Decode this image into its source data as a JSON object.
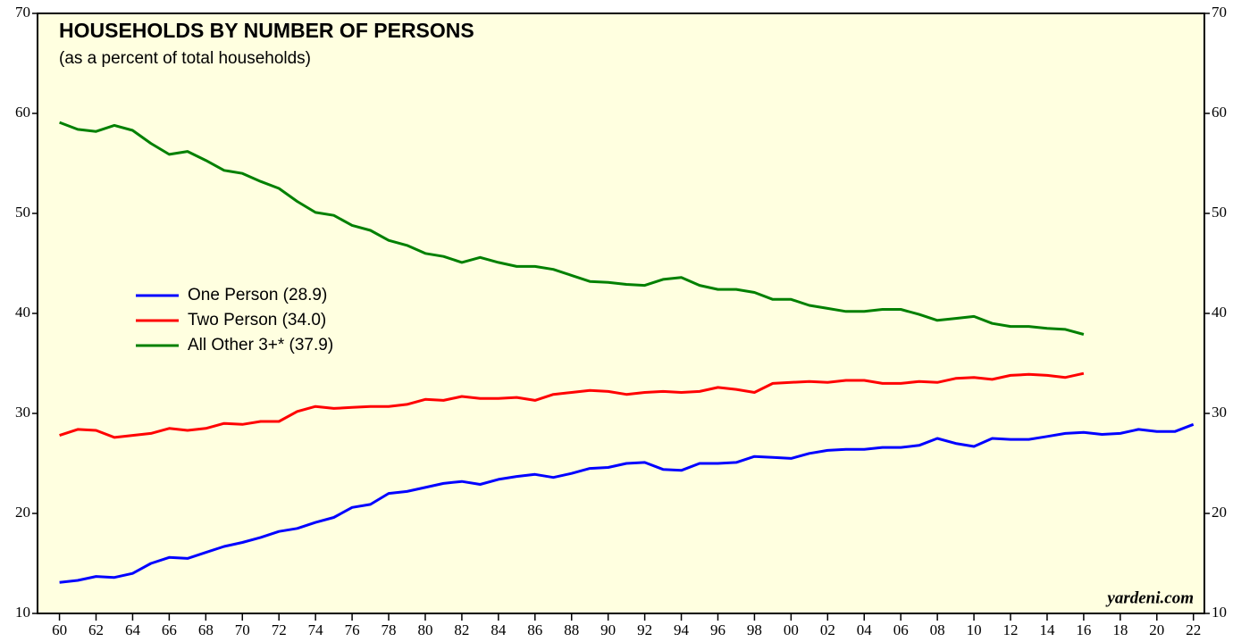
{
  "chart_data": {
    "type": "line",
    "title": "HOUSEHOLDS BY NUMBER OF PERSONS",
    "subtitle": "(as a percent of total households)",
    "source": "yardeni.com",
    "x": [
      1960,
      1961,
      1962,
      1963,
      1964,
      1965,
      1966,
      1967,
      1968,
      1969,
      1970,
      1971,
      1972,
      1973,
      1974,
      1975,
      1976,
      1977,
      1978,
      1979,
      1980,
      1981,
      1982,
      1983,
      1984,
      1985,
      1986,
      1987,
      1988,
      1989,
      1990,
      1991,
      1992,
      1993,
      1994,
      1995,
      1996,
      1997,
      1998,
      1999,
      2000,
      2001,
      2002,
      2003,
      2004,
      2005,
      2006,
      2007,
      2008,
      2009,
      2010,
      2011,
      2012,
      2013,
      2014,
      2015,
      2016,
      2017,
      2018,
      2019,
      2020,
      2021,
      2022
    ],
    "series": [
      {
        "name": "One Person (28.9)",
        "color": "#0000ff",
        "values": [
          13.1,
          13.3,
          13.7,
          13.6,
          14.0,
          15.0,
          15.6,
          15.5,
          16.1,
          16.7,
          17.1,
          17.6,
          18.2,
          18.5,
          19.1,
          19.6,
          20.6,
          20.9,
          22.0,
          22.2,
          22.6,
          23.0,
          23.2,
          22.9,
          23.4,
          23.7,
          23.9,
          23.6,
          24.0,
          24.5,
          24.6,
          25.0,
          25.1,
          24.4,
          24.3,
          25.0,
          25.0,
          25.1,
          25.7,
          25.6,
          25.5,
          26.0,
          26.3,
          26.4,
          26.4,
          26.6,
          26.6,
          26.8,
          27.5,
          27.0,
          26.7,
          27.5,
          27.4,
          27.4,
          27.7,
          28.0,
          28.1,
          27.9,
          28.0,
          28.4,
          28.2,
          28.2,
          28.9
        ]
      },
      {
        "name": "Two Person (34.0)",
        "color": "#ff0000",
        "values": [
          27.8,
          28.4,
          28.3,
          27.6,
          27.8,
          28.0,
          28.5,
          28.3,
          28.5,
          29.0,
          28.9,
          29.2,
          29.2,
          30.2,
          30.7,
          30.5,
          30.6,
          30.7,
          30.7,
          30.9,
          31.4,
          31.3,
          31.7,
          31.5,
          31.5,
          31.6,
          31.3,
          31.9,
          32.1,
          32.3,
          32.2,
          31.9,
          32.1,
          32.2,
          32.1,
          32.2,
          32.6,
          32.4,
          32.1,
          33.0,
          33.1,
          33.2,
          33.1,
          33.3,
          33.3,
          33.0,
          33.0,
          33.2,
          33.1,
          33.5,
          33.6,
          33.4,
          33.8,
          33.9,
          33.8,
          33.6,
          34.0,
          null,
          null,
          null,
          null,
          null,
          null
        ]
      },
      {
        "name": "All Other 3+* (37.9)",
        "color": "#008000",
        "values": [
          59.1,
          58.4,
          58.2,
          58.8,
          58.3,
          57.0,
          55.9,
          56.2,
          55.3,
          54.3,
          54.0,
          53.2,
          52.5,
          51.2,
          50.1,
          49.8,
          48.8,
          48.3,
          47.3,
          46.8,
          46.0,
          45.7,
          45.1,
          45.6,
          45.1,
          44.7,
          44.7,
          44.4,
          43.8,
          43.2,
          43.1,
          42.9,
          42.8,
          43.4,
          43.6,
          42.8,
          42.4,
          42.4,
          42.1,
          41.4,
          41.4,
          40.8,
          40.5,
          40.2,
          40.2,
          40.4,
          40.4,
          39.9,
          39.3,
          39.5,
          39.7,
          39.0,
          38.7,
          38.7,
          38.5,
          38.4,
          37.9,
          null,
          null,
          null,
          null,
          null,
          null
        ]
      }
    ],
    "xlim": [
      1958.8,
      2022.6
    ],
    "xticks": [
      {
        "value": 1960,
        "label": "60"
      },
      {
        "value": 1962,
        "label": "62"
      },
      {
        "value": 1964,
        "label": "64"
      },
      {
        "value": 1966,
        "label": "66"
      },
      {
        "value": 1968,
        "label": "68"
      },
      {
        "value": 1970,
        "label": "70"
      },
      {
        "value": 1972,
        "label": "72"
      },
      {
        "value": 1974,
        "label": "74"
      },
      {
        "value": 1976,
        "label": "76"
      },
      {
        "value": 1978,
        "label": "78"
      },
      {
        "value": 1980,
        "label": "80"
      },
      {
        "value": 1982,
        "label": "82"
      },
      {
        "value": 1984,
        "label": "84"
      },
      {
        "value": 1986,
        "label": "86"
      },
      {
        "value": 1988,
        "label": "88"
      },
      {
        "value": 1990,
        "label": "90"
      },
      {
        "value": 1992,
        "label": "92"
      },
      {
        "value": 1994,
        "label": "94"
      },
      {
        "value": 1996,
        "label": "96"
      },
      {
        "value": 1998,
        "label": "98"
      },
      {
        "value": 2000,
        "label": "00"
      },
      {
        "value": 2002,
        "label": "02"
      },
      {
        "value": 2004,
        "label": "04"
      },
      {
        "value": 2006,
        "label": "06"
      },
      {
        "value": 2008,
        "label": "08"
      },
      {
        "value": 2010,
        "label": "10"
      },
      {
        "value": 2012,
        "label": "12"
      },
      {
        "value": 2014,
        "label": "14"
      },
      {
        "value": 2016,
        "label": "16"
      },
      {
        "value": 2018,
        "label": "18"
      },
      {
        "value": 2020,
        "label": "20"
      },
      {
        "value": 2022,
        "label": "22"
      }
    ],
    "ylim": [
      10,
      70
    ],
    "yticks": [
      10,
      20,
      30,
      40,
      50,
      60,
      70
    ],
    "grid": false
  }
}
